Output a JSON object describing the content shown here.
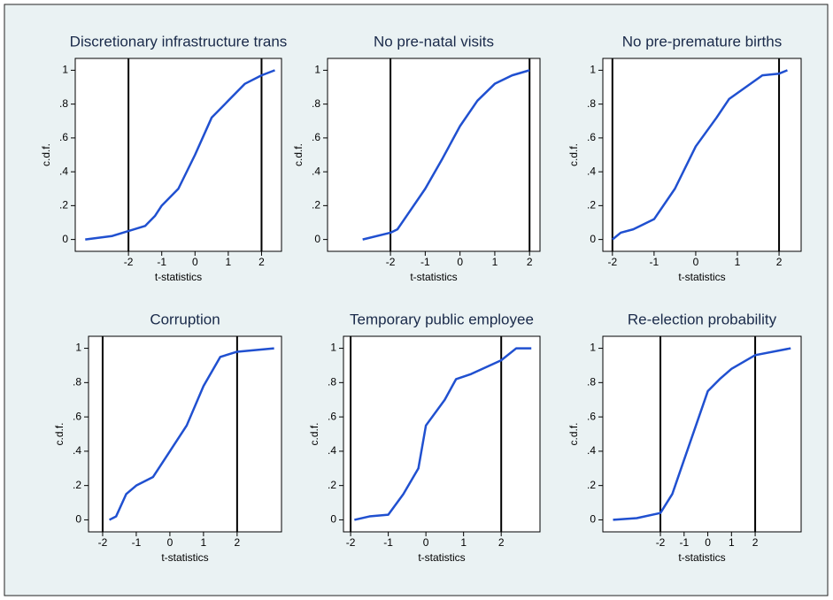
{
  "chart_data": [
    {
      "type": "line",
      "title": "Discretionary infrastructure trans",
      "x_label": "t-statistics",
      "y_label": "c.d.f.",
      "xlim": [
        -3.6,
        2.6
      ],
      "xticks": [
        -2,
        -1,
        0,
        1,
        2
      ],
      "ylim": [
        -0.07,
        1.07
      ],
      "yticks": [
        0,
        {
          "value": 0.2,
          "label": ".2"
        },
        {
          "value": 0.4,
          "label": ".4"
        },
        {
          "value": 0.6,
          "label": ".6"
        },
        {
          "value": 0.8,
          "label": ".8"
        },
        1
      ],
      "vlines": [
        -2,
        2
      ],
      "series": [
        {
          "color": "#2050d0",
          "x": [
            -3.3,
            -2.5,
            -2,
            -1.5,
            -1.2,
            -1,
            -0.5,
            0,
            0.5,
            1,
            1.5,
            2,
            2.4
          ],
          "values": [
            0,
            0.02,
            0.05,
            0.08,
            0.14,
            0.2,
            0.3,
            0.5,
            0.72,
            0.82,
            0.92,
            0.97,
            1
          ]
        }
      ]
    },
    {
      "type": "line",
      "title": "No pre-natal visits",
      "x_label": "t-statistics",
      "y_label": "c.d.f.",
      "xlim": [
        -3.81,
        2.3
      ],
      "xticks": [
        -2,
        -1,
        0,
        1,
        2
      ],
      "ylim": [
        -0.07,
        1.07
      ],
      "yticks": [
        0,
        {
          "value": 0.2,
          "label": ".2"
        },
        {
          "value": 0.4,
          "label": ".4"
        },
        {
          "value": 0.6,
          "label": ".6"
        },
        {
          "value": 0.8,
          "label": ".8"
        },
        1
      ],
      "vlines": [
        -2,
        2
      ],
      "series": [
        {
          "color": "#2050d0",
          "x": [
            -2.8,
            -2,
            -1.8,
            -1.5,
            -1,
            -0.5,
            0,
            0.5,
            1,
            1.5,
            2
          ],
          "values": [
            0,
            0.04,
            0.06,
            0.15,
            0.3,
            0.48,
            0.67,
            0.82,
            0.92,
            0.97,
            1
          ]
        }
      ]
    },
    {
      "type": "line",
      "title": "No pre-premature births",
      "x_label": "t-statistics",
      "y_label": "c.d.f.",
      "xlim": [
        -2.23,
        2.53
      ],
      "xticks": [
        -2,
        -1,
        0,
        1,
        2
      ],
      "ylim": [
        -0.07,
        1.07
      ],
      "yticks": [
        0,
        {
          "value": 0.2,
          "label": ".2"
        },
        {
          "value": 0.4,
          "label": ".4"
        },
        {
          "value": 0.6,
          "label": ".6"
        },
        {
          "value": 0.8,
          "label": ".8"
        },
        1
      ],
      "vlines": [
        -2,
        2
      ],
      "series": [
        {
          "color": "#2050d0",
          "x": [
            -2,
            -1.8,
            -1.5,
            -1,
            -0.5,
            0,
            0.5,
            0.8,
            1.2,
            1.6,
            2,
            2.2
          ],
          "values": [
            0,
            0.04,
            0.06,
            0.12,
            0.3,
            0.55,
            0.72,
            0.83,
            0.9,
            0.97,
            0.98,
            1
          ]
        }
      ]
    },
    {
      "type": "line",
      "title": "Corruption",
      "x_label": "t-statistics",
      "y_label": "c.d.f.",
      "xlim": [
        -2.42,
        3.32
      ],
      "xticks": [
        -2,
        -1,
        0,
        1,
        2
      ],
      "ylim": [
        -0.07,
        1.07
      ],
      "yticks": [
        0,
        {
          "value": 0.2,
          "label": ".2"
        },
        {
          "value": 0.4,
          "label": ".4"
        },
        {
          "value": 0.6,
          "label": ".6"
        },
        {
          "value": 0.8,
          "label": ".8"
        },
        1
      ],
      "vlines": [
        -2,
        2
      ],
      "series": [
        {
          "color": "#2050d0",
          "x": [
            -1.8,
            -1.6,
            -1.3,
            -1,
            -0.5,
            0,
            0.5,
            1,
            1.5,
            2,
            3.1
          ],
          "values": [
            0,
            0.02,
            0.15,
            0.2,
            0.25,
            0.4,
            0.55,
            0.78,
            0.95,
            0.98,
            1
          ]
        }
      ]
    },
    {
      "type": "line",
      "title": "Temporary public employee",
      "x_label": "t-statistics",
      "y_label": "c.d.f.",
      "xlim": [
        -2.19,
        3.03
      ],
      "xticks": [
        -2,
        -1,
        0,
        1,
        2
      ],
      "ylim": [
        -0.07,
        1.07
      ],
      "yticks": [
        0,
        {
          "value": 0.2,
          "label": ".2"
        },
        {
          "value": 0.4,
          "label": ".4"
        },
        {
          "value": 0.6,
          "label": ".6"
        },
        {
          "value": 0.8,
          "label": ".8"
        },
        1
      ],
      "vlines": [
        -2,
        2
      ],
      "series": [
        {
          "color": "#2050d0",
          "x": [
            -1.9,
            -1.5,
            -1,
            -0.6,
            -0.2,
            0,
            0.5,
            0.8,
            1.2,
            2,
            2.4,
            2.8
          ],
          "values": [
            0,
            0.02,
            0.03,
            0.15,
            0.3,
            0.55,
            0.7,
            0.82,
            0.85,
            0.93,
            1,
            1
          ]
        }
      ]
    },
    {
      "type": "line",
      "title": "Re-election probability",
      "x_label": "t-statistics",
      "y_label": "c.d.f.",
      "xlim": [
        -4.43,
        3.94
      ],
      "xticks": [
        -2,
        -1,
        0,
        1,
        2
      ],
      "ylim": [
        -0.07,
        1.07
      ],
      "yticks": [
        0,
        {
          "value": 0.2,
          "label": ".2"
        },
        {
          "value": 0.4,
          "label": ".4"
        },
        {
          "value": 0.6,
          "label": ".6"
        },
        {
          "value": 0.8,
          "label": ".8"
        },
        1
      ],
      "vlines": [
        -2,
        2
      ],
      "series": [
        {
          "color": "#2050d0",
          "x": [
            -4,
            -3,
            -2,
            -1.5,
            -1,
            -0.5,
            0,
            0.5,
            1,
            2,
            3.5
          ],
          "values": [
            0,
            0.01,
            0.04,
            0.15,
            0.35,
            0.55,
            0.75,
            0.82,
            0.88,
            0.96,
            1
          ]
        }
      ]
    }
  ]
}
